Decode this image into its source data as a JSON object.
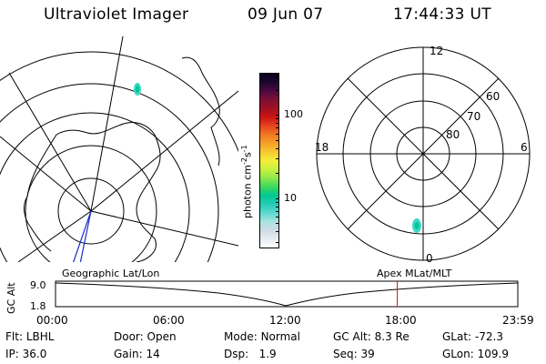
{
  "header": {
    "instrument": "Ultraviolet Imager",
    "date": "09 Jun 07",
    "time": "17:44:33 UT"
  },
  "colorbar": {
    "unit_label": "photon cm",
    "unit_exp1": "-2",
    "unit_mid": "s",
    "unit_exp2": "-1",
    "ticks": [
      {
        "value": 100,
        "label": "100"
      },
      {
        "value": 10,
        "label": "10"
      }
    ],
    "range": [
      2.5,
      320
    ],
    "colors": [
      "#ffffff",
      "#e6ecf2",
      "#cfdbe6",
      "#a8e3e0",
      "#59d9cf",
      "#23cbb4",
      "#00c890",
      "#3ed85c",
      "#8ee84a",
      "#c8f040",
      "#f5ee3a",
      "#f7c830",
      "#f6a02a",
      "#f07722",
      "#e4441f",
      "#cc1414",
      "#a01022",
      "#7d0f33",
      "#4e0a40",
      "#1d062f",
      "#0a0220"
    ]
  },
  "polar_grid": {
    "mlt_labels": [
      "12",
      "6",
      "0",
      "18"
    ],
    "lat_labels": [
      "60",
      "70",
      "80"
    ]
  },
  "altitude_panel": {
    "axis_label": "GC Alt",
    "left_label": "Geographic Lat/Lon",
    "right_label": "Apex MLat/MLT",
    "y_ticks": [
      "9.0",
      "1.8"
    ],
    "x_ticks": [
      "00:00",
      "06:00",
      "12:00",
      "18:00",
      "23:59"
    ],
    "current_time_hours": 17.74
  },
  "status": {
    "filter": {
      "label": "Flt:",
      "value": "LBHL"
    },
    "ip": {
      "label": "IP:",
      "value": "36.0"
    },
    "door": {
      "label": "Door:",
      "value": "Open"
    },
    "gain": {
      "label": "Gain:",
      "value": "14"
    },
    "mode": {
      "label": "Mode:",
      "value": "Normal"
    },
    "dsp": {
      "label": "Dsp:",
      "value": "1.9"
    },
    "gc_alt": {
      "label": "GC Alt:",
      "value": "8.3 Re"
    },
    "seq": {
      "label": "Seq:",
      "value": "39"
    },
    "glat": {
      "label": "GLat:",
      "value": "-72.3"
    },
    "glon": {
      "label": "GLon:",
      "value": "109.9"
    }
  }
}
